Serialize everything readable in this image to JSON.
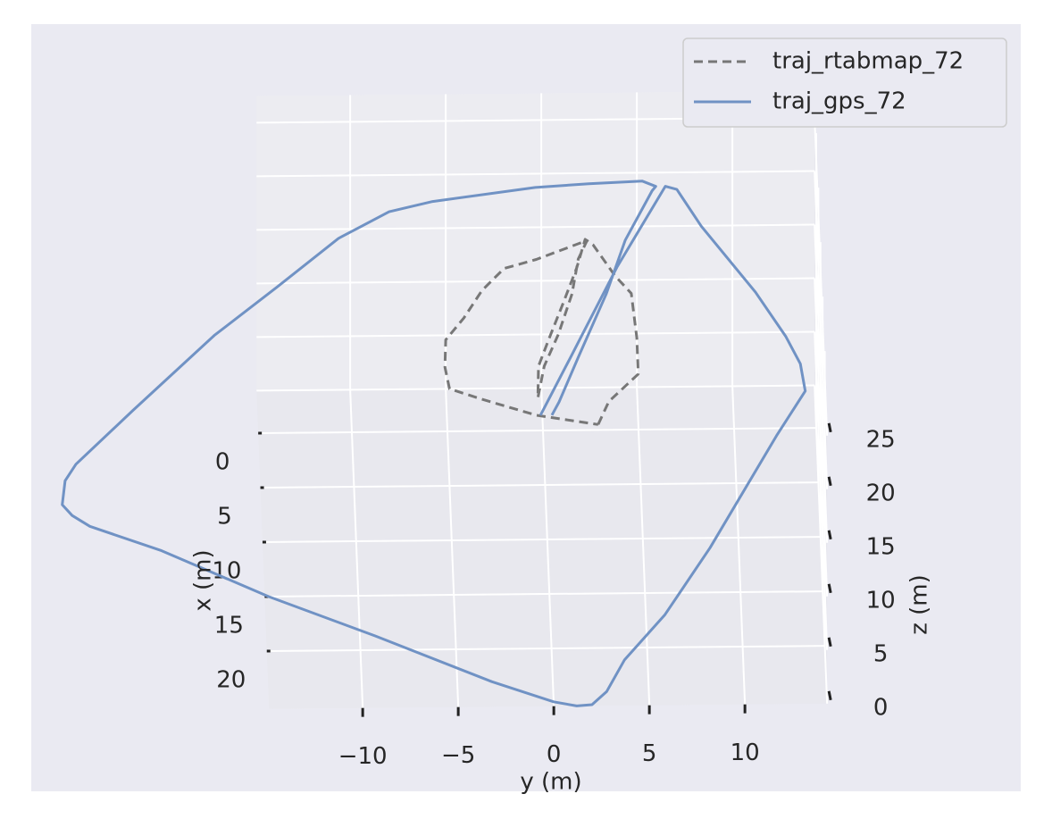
{
  "chart_data": {
    "type": "line3d",
    "xlabel": "x (m)",
    "ylabel": "y (m)",
    "zlabel": "z (m)",
    "xlim": [
      -3.9,
      25.3
    ],
    "ylim": [
      -14.9,
      14.3
    ],
    "zlim": [
      0,
      27.5
    ],
    "xticks": [
      0,
      5,
      10,
      15,
      20
    ],
    "yticks": [
      {
        "value": -10,
        "label": "−10"
      },
      {
        "value": -5,
        "label": "−5"
      },
      0,
      5,
      10
    ],
    "zticks": [
      0,
      5,
      10,
      15,
      20,
      25
    ],
    "grid": true,
    "legend": "upper right",
    "series": [
      {
        "name": "traj_rtabmap_72",
        "color": "#777777",
        "dash": true,
        "x": [
          -0.5,
          -2.6,
          -4.0,
          -5.1,
          -8.4,
          -12.5,
          -14.1,
          -17.0,
          -17.5,
          -14.9,
          -11.6,
          -8.4,
          -5.9,
          -3.0,
          -5.9,
          -8.8,
          -12.5,
          -15.7,
          -17.4,
          -15.7,
          -14.9,
          -12.9,
          -10.4,
          -8.4,
          -5.9,
          -3.9,
          -2.9,
          -1.4,
          -0.5
        ],
        "y": [
          2.9,
          3.5,
          4.4,
          5.1,
          5.1,
          4.9,
          4.1,
          3.0,
          2.6,
          2.1,
          1.3,
          0.5,
          -0.1,
          -0.2,
          0.2,
          1.0,
          1.8,
          2.2,
          2.7,
          0.0,
          -1.7,
          -2.9,
          -3.9,
          -4.9,
          -5.0,
          -4.8,
          -3.1,
          -0.3,
          2.9
        ]
      },
      {
        "name": "traj_gps_72",
        "color": "#7092c4",
        "dash": false,
        "x": [
          -1.4,
          -6.7,
          -14.9,
          -22.3,
          -22.0,
          -18.6,
          -12.5,
          -8.4,
          -5.9,
          -3.4,
          0.7,
          10.9,
          17.0,
          21.1,
          24.0,
          25.2,
          25.3,
          24.9,
          23.0,
          18.7,
          15.0,
          10.7,
          8.4,
          7.4,
          6.4,
          4.2,
          2.7,
          -2.2,
          -9.0,
          -13.4,
          -17.8,
          -20.2,
          -21.1,
          -22.3,
          -22.6,
          -22.8,
          -22.3,
          -21.9,
          -17.4,
          -12.5,
          -6.7,
          -2.6,
          -1.4
        ],
        "y": [
          -0.1,
          1.6,
          4.2,
          6.9,
          7.5,
          8.7,
          11.4,
          12.9,
          13.6,
          13.8,
          12.2,
          8.5,
          6.0,
          3.8,
          2.8,
          2.0,
          1.2,
          0.0,
          -3.2,
          -9.2,
          -14.7,
          -20.2,
          -23.9,
          -24.8,
          -25.3,
          -25.1,
          -24.5,
          -21.4,
          -17.0,
          -13.6,
          -10.3,
          -7.6,
          -5.3,
          0.1,
          2.9,
          5.7,
          6.4,
          6.2,
          4.7,
          3.6,
          2.0,
          0.9,
          0.5
        ]
      }
    ]
  }
}
